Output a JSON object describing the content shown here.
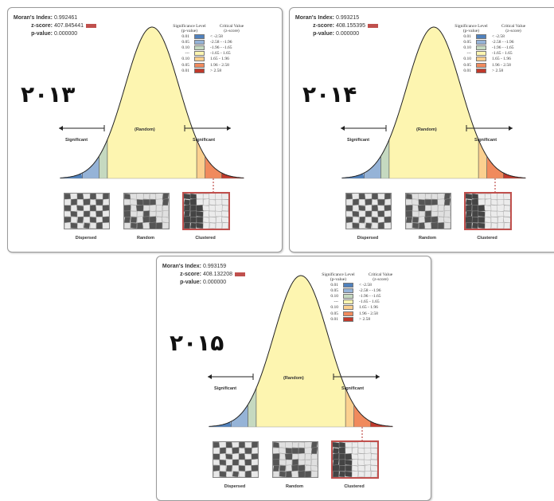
{
  "panels": [
    {
      "year": "٢٠١٣",
      "morans_index_label": "Moran's Index:",
      "morans_index": "0.992461",
      "z_score_label": "z-score:",
      "z_score": "407.845441",
      "p_value_label": "p-value:",
      "p_value": "0.000000"
    },
    {
      "year": "٢٠١۴",
      "morans_index_label": "Moran's Index:",
      "morans_index": "0.993215",
      "z_score_label": "z-score:",
      "z_score": "408.155395",
      "p_value_label": "p-value:",
      "p_value": "0.000000"
    },
    {
      "year": "٢٠١۵",
      "morans_index_label": "Moran's Index:",
      "morans_index": "0.993159",
      "z_score_label": "z-score:",
      "z_score": "408.132208",
      "p_value_label": "p-value:",
      "p_value": "0.000000"
    }
  ],
  "legend": {
    "sig_header_1": "Significance Level",
    "sig_header_2": "(p-value)",
    "crit_header_1": "Critical Value",
    "crit_header_2": "(z-score)",
    "rows": [
      {
        "p": "0.01",
        "z": "< -2.58",
        "color": "#4f81bd"
      },
      {
        "p": "0.05",
        "z": "-2.58 - -1.96",
        "color": "#95b3d7"
      },
      {
        "p": "0.10",
        "z": "-1.96 - -1.65",
        "color": "#c5d9c0"
      },
      {
        "p": "---",
        "z": "-1.65 - 1.65",
        "color": "#fdf5b0"
      },
      {
        "p": "0.10",
        "z": "1.65 - 1.96",
        "color": "#fbd08f"
      },
      {
        "p": "0.05",
        "z": "1.96 - 2.58",
        "color": "#f08a5d"
      },
      {
        "p": "0.01",
        "z": "> 2.58",
        "color": "#c0392b"
      }
    ]
  },
  "labels": {
    "significant": "Significant",
    "random": "(Random)",
    "dispersed": "Dispersed",
    "random_pattern": "Random",
    "clustered": "Clustered"
  },
  "colors": {
    "z_bar": "#c0504d",
    "curve_fill": "#fdf5b0",
    "clustered_border": "#c0504d"
  }
}
